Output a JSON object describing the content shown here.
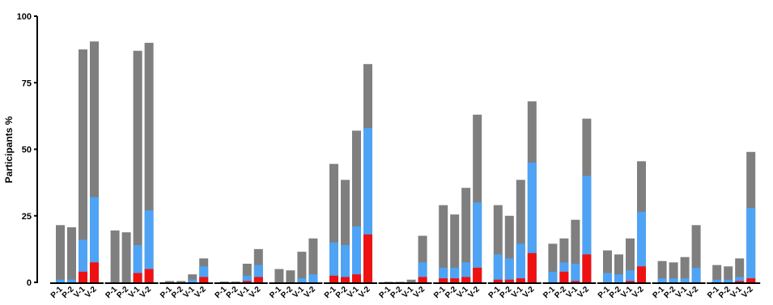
{
  "chart_data": {
    "type": "bar",
    "stacked": true,
    "ylabel": "Participants %",
    "ylim": [
      0,
      100
    ],
    "yticks": [
      "0",
      "25",
      "50",
      "75",
      "100"
    ],
    "colors": {
      "grey": "#7f7f7f",
      "blue": "#4ea3f5",
      "red": "#ee1111",
      "axis": "#000000"
    },
    "groups": [
      {
        "labels": [
          "P-1",
          "P-2",
          "V-1",
          "V-2"
        ],
        "total": [
          21.5,
          20.7,
          87.5,
          90.5
        ],
        "blue": [
          1,
          1,
          16,
          32
        ],
        "red": [
          0,
          0,
          4,
          7.5
        ]
      },
      {
        "labels": [
          "P-1",
          "P-2",
          "V-1",
          "V-2"
        ],
        "total": [
          19.5,
          18.8,
          87,
          90
        ],
        "blue": [
          0,
          0,
          14,
          27
        ],
        "red": [
          0,
          0,
          3.5,
          5
        ]
      },
      {
        "labels": [
          "P-1",
          "P-2",
          "V-1",
          "V-2"
        ],
        "total": [
          0.5,
          0.5,
          3,
          9
        ],
        "blue": [
          0,
          0,
          1,
          6
        ],
        "red": [
          0,
          0,
          0,
          2
        ]
      },
      {
        "labels": [
          "P-1",
          "P-2",
          "V-1",
          "V-2"
        ],
        "total": [
          0.3,
          0.3,
          7,
          12.5
        ],
        "blue": [
          0,
          0,
          2.5,
          6.5
        ],
        "red": [
          0,
          0,
          0.5,
          2
        ]
      },
      {
        "labels": [
          "P-1",
          "P-2",
          "V-1",
          "V-2"
        ],
        "total": [
          5,
          4.5,
          11.5,
          16.5
        ],
        "blue": [
          0,
          0,
          1.5,
          3
        ],
        "red": [
          0,
          0,
          0,
          0
        ]
      },
      {
        "labels": [
          "P-1",
          "P-2",
          "V-1",
          "V-2"
        ],
        "total": [
          44.5,
          38.5,
          57,
          82
        ],
        "blue": [
          15,
          14,
          21,
          58
        ],
        "red": [
          2.5,
          2,
          3,
          18
        ]
      },
      {
        "labels": [
          "P-1",
          "P-2",
          "V-1",
          "V-2"
        ],
        "total": [
          0.2,
          0.2,
          1,
          17.5
        ],
        "blue": [
          0,
          0,
          0,
          7.5
        ],
        "red": [
          0,
          0,
          0,
          2
        ]
      },
      {
        "labels": [
          "P-1",
          "P-2",
          "V-1",
          "V-2"
        ],
        "total": [
          29,
          25.5,
          35.5,
          63
        ],
        "blue": [
          5.5,
          5.5,
          7.5,
          30
        ],
        "red": [
          1.5,
          1.5,
          2,
          5.5
        ]
      },
      {
        "labels": [
          "P-1",
          "P-2",
          "V-1",
          "V-2"
        ],
        "total": [
          29,
          25,
          38.5,
          68
        ],
        "blue": [
          10.5,
          9,
          14.5,
          45
        ],
        "red": [
          1,
          1,
          1.5,
          11
        ]
      },
      {
        "labels": [
          "P-1",
          "P-2",
          "V-1",
          "V-2"
        ],
        "total": [
          14.5,
          16.5,
          23.5,
          61.5
        ],
        "blue": [
          4,
          7.5,
          7,
          40
        ],
        "red": [
          0,
          4,
          0.5,
          10.5
        ]
      },
      {
        "labels": [
          "P-1",
          "P-2",
          "V-1",
          "V-2"
        ],
        "total": [
          12,
          10.5,
          16.5,
          45.5
        ],
        "blue": [
          3.5,
          3,
          4.5,
          26.5
        ],
        "red": [
          0,
          0,
          0.5,
          6
        ]
      },
      {
        "labels": [
          "P-1",
          "P-2",
          "V-1",
          "V-2"
        ],
        "total": [
          8,
          7.5,
          9.5,
          21.5
        ],
        "blue": [
          1.5,
          1.5,
          1.5,
          5.5
        ],
        "red": [
          0,
          0,
          0,
          0
        ]
      },
      {
        "labels": [
          "P-1",
          "P-2",
          "V-1",
          "V-2"
        ],
        "total": [
          6.5,
          6,
          9,
          49
        ],
        "blue": [
          1,
          1,
          2,
          28
        ],
        "red": [
          0,
          0,
          0.5,
          1.5
        ]
      }
    ]
  }
}
